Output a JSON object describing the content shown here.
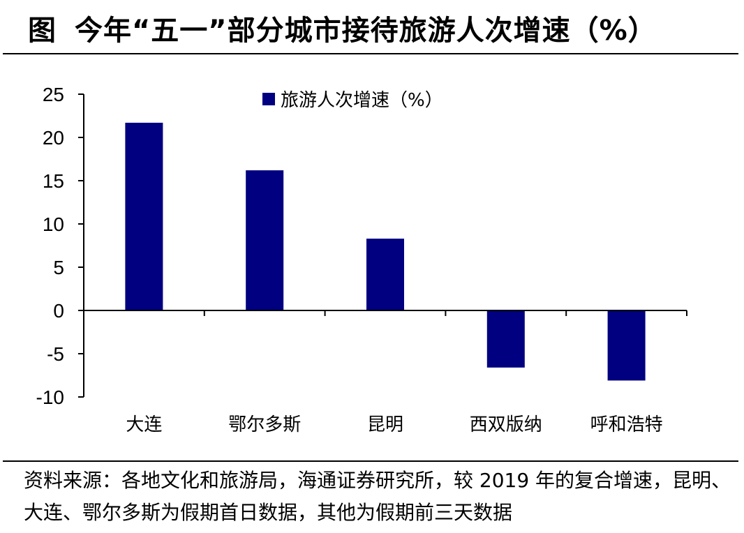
{
  "title": {
    "prefix": "图",
    "text": "今年“五一”部分城市接待旅游人次增速（%）"
  },
  "source": "资料来源：各地文化和旅游局，海通证券研究所，较 2019 年的复合增速，昆明、大连、鄂尔多斯为假期首日数据，其他为假期前三天数据",
  "chart_data": {
    "type": "bar",
    "categories": [
      "大连",
      "鄂尔多斯",
      "昆明",
      "西双版纳",
      "呼和浩特"
    ],
    "series": [
      {
        "name": "旅游人次增速（%）",
        "values": [
          21.7,
          16.2,
          8.3,
          -6.6,
          -8.1
        ],
        "color": "#000080"
      }
    ],
    "ylim": [
      -10,
      25
    ],
    "yticks": [
      25,
      20,
      15,
      10,
      5,
      0,
      -5,
      -10
    ],
    "legend_position": "top-center",
    "grid": false
  }
}
